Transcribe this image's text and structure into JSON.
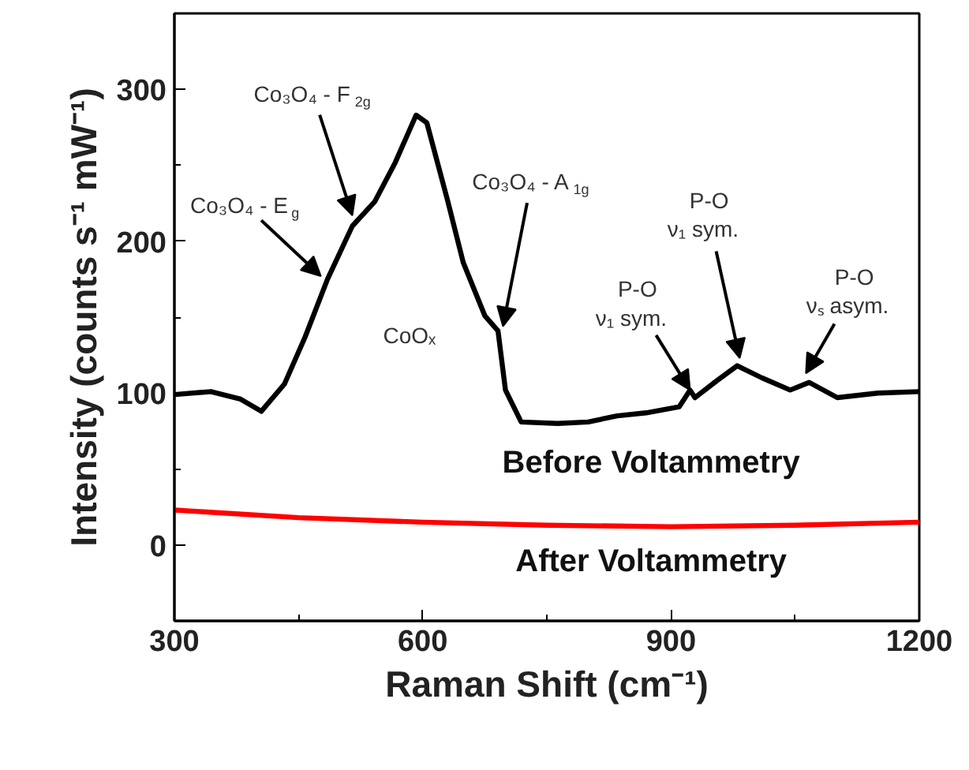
{
  "chart_data": {
    "type": "line",
    "xlabel": "Raman Shift (cm⁻¹)",
    "ylabel": "Intensity (counts s⁻¹ mW⁻¹)",
    "xlim": [
      300,
      1200
    ],
    "ylim": [
      -50,
      350
    ],
    "xticks": [
      300,
      600,
      900,
      1200
    ],
    "yticks": [
      0,
      100,
      200,
      300
    ],
    "series": [
      {
        "name": "Before Voltammetry",
        "color": "#000000",
        "x": [
          300,
          344,
          380,
          405,
          433,
          458,
          485,
          515,
          542,
          567,
          592,
          605,
          630,
          649,
          675,
          691,
          700,
          719,
          763,
          800,
          835,
          870,
          910,
          923,
          929,
          955,
          980,
          1010,
          1044,
          1067,
          1101,
          1150,
          1200
        ],
        "values": [
          99,
          101,
          96,
          88,
          106,
          137,
          175,
          210,
          226,
          252,
          283,
          278,
          227,
          186,
          151,
          141,
          102,
          81,
          80,
          81,
          85,
          87,
          91,
          102,
          97,
          108,
          118,
          110,
          102,
          107,
          97,
          100,
          101
        ]
      },
      {
        "name": "After Voltammetry",
        "color": "#ff0000",
        "x": [
          300,
          450,
          600,
          750,
          900,
          1050,
          1200
        ],
        "values": [
          23,
          18,
          15,
          13,
          12,
          13,
          15
        ]
      }
    ],
    "annotations": [
      {
        "text": "Co₃O₄ - E$_{g}$",
        "x": 477,
        "y": 177
      },
      {
        "text": "Co₃O₄ - F$_{2g}$",
        "x": 515,
        "y": 217
      },
      {
        "text": "Co₃O₄ - A$_{1g}$",
        "x": 697,
        "y": 144
      },
      {
        "text": "P-O\nν₁ sym.",
        "x": 923,
        "y": 102
      },
      {
        "text": "P-O\nν₁ sym.",
        "x": 983,
        "y": 123
      },
      {
        "text": "P-O\nνₛ asym.",
        "x": 1063,
        "y": 113
      },
      "CoOₓ"
    ]
  }
}
